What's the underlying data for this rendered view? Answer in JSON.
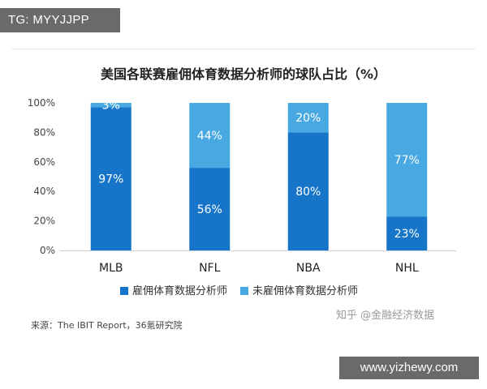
{
  "overlay": {
    "top_tag": "TG: MYYJJPP",
    "bottom_tag": "www.yizhewy.com"
  },
  "colors": {
    "hired": "#1674C9",
    "not_hired": "#47A8E2",
    "axis": "#cfcfcf",
    "grid": "#e6e6e6"
  },
  "chart_data": {
    "type": "bar",
    "stacked": true,
    "title": "美国各联赛雇佣体育数据分析师的球队占比（%）",
    "categories": [
      "MLB",
      "NFL",
      "NBA",
      "NHL"
    ],
    "series": [
      {
        "name": "雇佣体育数据分析师",
        "values": [
          97,
          56,
          80,
          23
        ],
        "labels": [
          "97%",
          "56%",
          "80%",
          "23%"
        ]
      },
      {
        "name": "未雇佣体育数据分析师",
        "values": [
          3,
          44,
          20,
          77
        ],
        "labels": [
          "3%",
          "44%",
          "20%",
          "77%"
        ]
      }
    ],
    "ylim": [
      0,
      100
    ],
    "yticks": [
      "0%",
      "20%",
      "40%",
      "60%",
      "80%",
      "100%"
    ],
    "legend_position": "bottom",
    "grid": false
  },
  "source": "来源：The IBIT Report，36氪研究院",
  "watermark": "知乎 @金融经济数据"
}
